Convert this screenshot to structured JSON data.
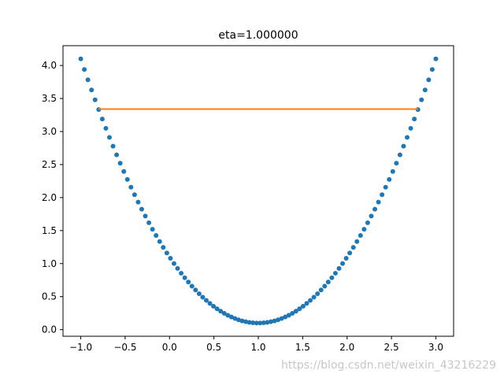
{
  "chart_data": {
    "type": "scatter",
    "title": "eta=1.000000",
    "xlabel": "",
    "ylabel": "",
    "xlim": [
      -1.2,
      3.2
    ],
    "ylim": [
      -0.1,
      4.3
    ],
    "xticks": [
      -1.0,
      -0.5,
      0.0,
      0.5,
      1.0,
      1.5,
      2.0,
      2.5,
      3.0
    ],
    "xtick_labels": [
      "−1.0",
      "−0.5",
      "0.0",
      "0.5",
      "1.0",
      "1.5",
      "2.0",
      "2.5",
      "3.0"
    ],
    "yticks": [
      0.0,
      0.5,
      1.0,
      1.5,
      2.0,
      2.5,
      3.0,
      3.5,
      4.0
    ],
    "ytick_labels": [
      "0.0",
      "0.5",
      "1.0",
      "1.5",
      "2.0",
      "2.5",
      "3.0",
      "3.5",
      "4.0"
    ],
    "grid": false,
    "series": [
      {
        "type": "scatter",
        "color": "#1f77b4",
        "x_range": [
          -1.0,
          3.0
        ],
        "n_points": 100,
        "function": "(x-1)^2 + 0.1"
      },
      {
        "type": "line",
        "color": "#ff7f0e",
        "x": [
          -0.8,
          2.8
        ],
        "y": [
          3.34,
          3.34
        ]
      }
    ]
  },
  "watermark": "https://blog.csdn.net/weixin_43216229"
}
